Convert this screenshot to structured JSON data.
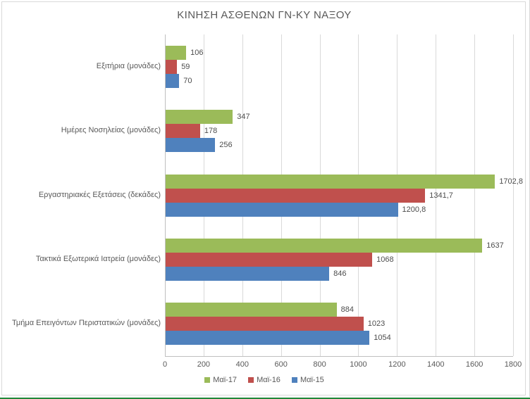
{
  "window": {
    "bottom_edge_color": "#218838",
    "frame_border_color": "#d9d9d9"
  },
  "chart_data": {
    "type": "bar",
    "orientation": "horizontal",
    "title": "ΚΙΝΗΣΗ ΑΣΘΕΝΩΝ ΓΝ-ΚΥ ΝΑΞΟΥ",
    "categories": [
      "Εξιτήρια (μονάδες)",
      "Ημέρες Νοσηλείας (μονάδες)",
      "Εργαστηριακές Εξετάσεις (δεκάδες)",
      "Τακτικά Εξωτερικά Ιατρεία (μονάδες)",
      "Τμήμα Επειγόντων Περιστατικών  (μονάδες)"
    ],
    "series": [
      {
        "name": "Μαϊ-17",
        "color": "#9bbb59",
        "values": [
          106,
          347,
          1702.8,
          1637,
          884
        ],
        "labels": [
          "106",
          "347",
          "1702,8",
          "1637",
          "884"
        ]
      },
      {
        "name": "Μαϊ-16",
        "color": "#c0504d",
        "values": [
          59,
          178,
          1341.7,
          1068,
          1023
        ],
        "labels": [
          "59",
          "178",
          "1341,7",
          "1068",
          "1023"
        ]
      },
      {
        "name": "Μαϊ-15",
        "color": "#4f81bd",
        "values": [
          70,
          256,
          1200.8,
          846,
          1054
        ],
        "labels": [
          "70",
          "256",
          "1200,8",
          "846",
          "1054"
        ]
      }
    ],
    "x_ticks": [
      0,
      200,
      400,
      600,
      800,
      1000,
      1200,
      1400,
      1600,
      1800
    ],
    "xlim": [
      0,
      1800
    ],
    "grid": true,
    "gridline_color": "#d9d9d9",
    "axis_line_color": "#bfbfbf",
    "text_color": "#595959",
    "data_label_color": "#4d4d4d",
    "legend_position": "bottom"
  }
}
